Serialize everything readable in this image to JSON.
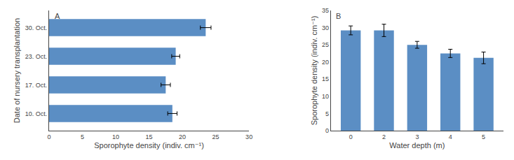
{
  "chart_data": [
    {
      "type": "bar",
      "orientation": "horizontal",
      "annotations": [
        "A"
      ],
      "categories": [
        "10. Oct.",
        "17. Oct.",
        "23. Oct.",
        "30. Oct."
      ],
      "values": [
        18.5,
        17.5,
        19.0,
        23.5
      ],
      "errors": [
        0.7,
        0.7,
        0.6,
        0.8
      ],
      "xlabel": "Sporophyte density (indiv. cm⁻¹)",
      "ylabel": "Date of nursery transplantation",
      "xlim": [
        0,
        30
      ],
      "xticks": [
        0,
        5,
        10,
        15,
        20,
        25,
        30
      ],
      "color": "#5b8ec4",
      "grid": false
    },
    {
      "type": "bar",
      "annotations": [
        "B"
      ],
      "categories": [
        "0",
        "2",
        "3",
        "4",
        "5"
      ],
      "values": [
        29.2,
        29.2,
        25.0,
        22.5,
        21.2
      ],
      "errors": [
        1.3,
        1.8,
        1.0,
        1.2,
        1.7
      ],
      "xlabel": "Water depth (m)",
      "ylabel": "Sporophyte density (indiv. cm⁻¹)",
      "ylim": [
        0,
        35
      ],
      "yticks": [
        0,
        5,
        10,
        15,
        20,
        25,
        30,
        35
      ],
      "color": "#5b8ec4",
      "grid": false
    }
  ]
}
